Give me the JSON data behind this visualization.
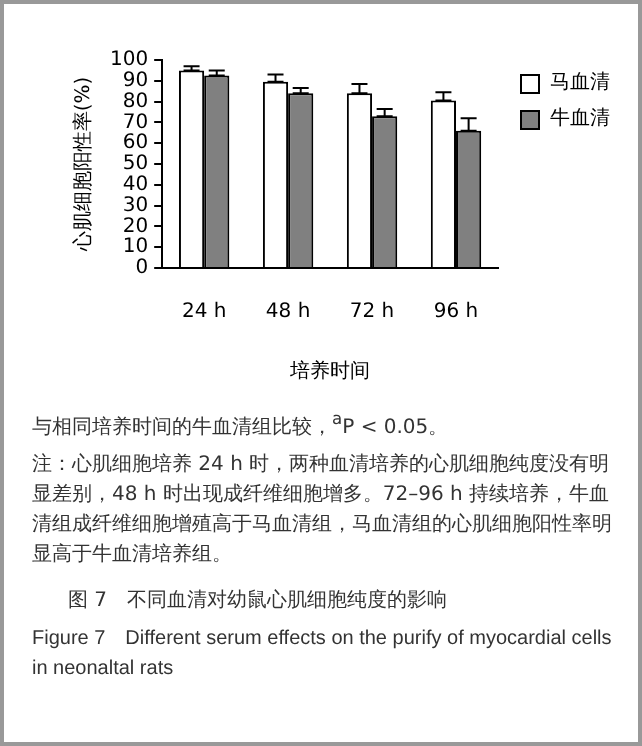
{
  "chart_data": {
    "type": "bar",
    "xlabel": "培养时间",
    "ylabel": "心肌细胞阳性率(%)",
    "categories": [
      "24 h",
      "48 h",
      "72 h",
      "96 h"
    ],
    "series": [
      {
        "name": "马血清",
        "color": "#ffffff",
        "values": [
          95,
          89.5,
          84,
          80.5
        ],
        "errors": [
          [
            95,
            97
          ],
          [
            89.5,
            93
          ],
          [
            84,
            88.5
          ],
          [
            80.5,
            84.5
          ]
        ]
      },
      {
        "name": "牛血清",
        "color": "#808080",
        "values": [
          92.5,
          84,
          73,
          66
        ],
        "errors": [
          [
            92.5,
            95
          ],
          [
            84,
            86.5
          ],
          [
            73,
            76.5
          ],
          [
            66,
            72
          ]
        ]
      }
    ],
    "ylim": [
      0,
      100
    ],
    "yticks": [
      0,
      10,
      20,
      30,
      40,
      50,
      60,
      70,
      80,
      90,
      100
    ],
    "grid": false,
    "legend": "top right",
    "annotations": [
      "与相同培养时间的牛血清组比较，$^{a}$P < 0.05。",
      "注：心肌细胞培养 24 h 时，两种血清培养的心肌细胞纯度没有明显差别，48 h 时出现成纤维细胞增多。72–96 h 持续培养，牛血清组成纤维细胞增殖高于马血清组，马血清组的心肌细胞阳性率明显高于牛血清培养组。",
      "图 7　不同血清对幼鼠心肌细胞纯度的影响",
      "Figure 7　Different serum effects on the purify of myocardial cells in neonaltal rats"
    ]
  }
}
